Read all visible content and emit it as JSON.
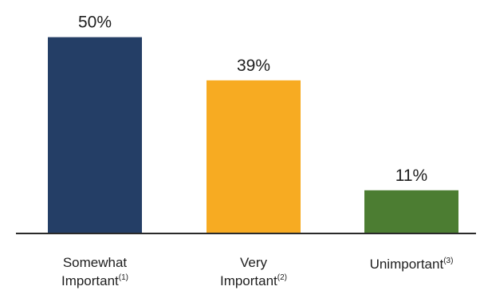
{
  "chart_data": {
    "type": "bar",
    "categories": [
      {
        "lines": [
          "Somewhat",
          "Important"
        ],
        "note": "(1)"
      },
      {
        "lines": [
          "Very",
          "Important"
        ],
        "note": "(2)"
      },
      {
        "lines": [
          "Unimportant"
        ],
        "note": "(3)"
      }
    ],
    "values": [
      50,
      39,
      11
    ],
    "value_labels": [
      "50%",
      "39%",
      "11%"
    ],
    "colors": [
      "#243e66",
      "#f7ab22",
      "#4c7d32"
    ],
    "ylim": [
      0,
      55
    ],
    "grid": false,
    "legend": "none"
  }
}
